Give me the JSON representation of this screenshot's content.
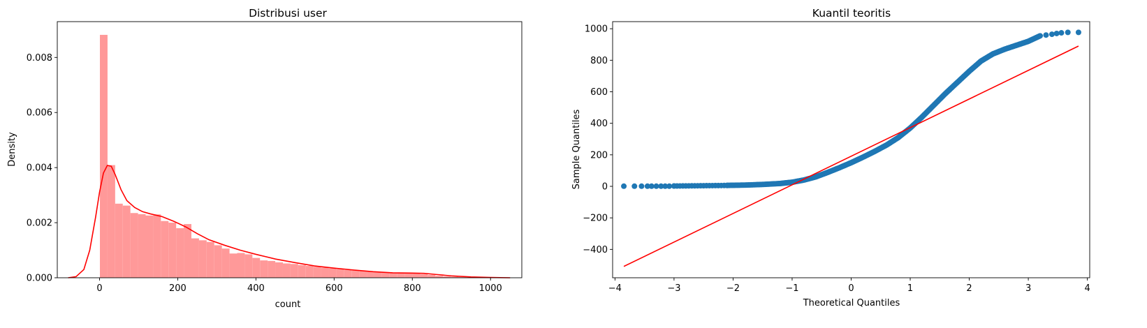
{
  "chart_data": [
    {
      "type": "histogram_kde",
      "title": "Distribusi user",
      "xlabel": "count",
      "ylabel": "Density",
      "xlim": [
        -108,
        1080
      ],
      "ylim": [
        0,
        0.0093
      ],
      "xticks": [
        0,
        200,
        400,
        600,
        800,
        1000
      ],
      "yticks": [
        0.0,
        0.002,
        0.004,
        0.006,
        0.008
      ],
      "ytick_labels": [
        "0.000",
        "0.002",
        "0.004",
        "0.006",
        "0.008"
      ],
      "grid": false,
      "colors": {
        "bars": "#ff9999",
        "kde": "#ff0000"
      },
      "bin_width": 19.5,
      "bins_start": 1,
      "hist_density": [
        0.00882,
        0.00409,
        0.00269,
        0.00262,
        0.00235,
        0.00231,
        0.00226,
        0.0023,
        0.00206,
        0.002,
        0.0018,
        0.00195,
        0.00143,
        0.00136,
        0.0013,
        0.00118,
        0.00106,
        0.00088,
        0.0009,
        0.00085,
        0.00072,
        0.00063,
        0.00061,
        0.00056,
        0.00052,
        0.0005,
        0.00046,
        0.00043,
        0.0004,
        0.00037,
        0.00034,
        0.00031,
        0.00028,
        0.00026,
        0.00024,
        0.00023,
        0.00021,
        0.0002,
        0.00019,
        0.00018,
        0.00018,
        0.00017,
        0.00013,
        0.0001,
        7e-05,
        5e-05,
        4e-05,
        3e-05,
        2e-05,
        1e-05,
        1e-05
      ],
      "kde": {
        "x": [
          -80,
          -60,
          -40,
          -25,
          -10,
          0,
          10,
          20,
          30,
          40,
          55,
          70,
          90,
          110,
          130,
          160,
          190,
          220,
          250,
          280,
          320,
          360,
          400,
          450,
          500,
          550,
          600,
          650,
          700,
          750,
          800,
          830,
          860,
          900,
          950,
          1000,
          1050
        ],
        "y": [
          0.0,
          4e-05,
          0.0003,
          0.001,
          0.0022,
          0.0031,
          0.0038,
          0.00408,
          0.00405,
          0.00375,
          0.0032,
          0.0028,
          0.00255,
          0.0024,
          0.00232,
          0.00222,
          0.00205,
          0.00185,
          0.0016,
          0.00138,
          0.00118,
          0.001,
          0.00085,
          0.00068,
          0.00055,
          0.00043,
          0.00035,
          0.00028,
          0.00022,
          0.00018,
          0.00017,
          0.00016,
          0.00012,
          7e-05,
          3e-05,
          1e-05,
          0.0
        ]
      }
    },
    {
      "type": "scatter",
      "title": "Kuantil teoritis",
      "xlabel": "Theoretical Quantiles",
      "ylabel": "Sample Quantiles",
      "xlim": [
        -4.04,
        4.04
      ],
      "ylim": [
        -580,
        1045
      ],
      "xticks": [
        -4,
        -3,
        -2,
        -1,
        0,
        1,
        2,
        3,
        4
      ],
      "xtick_labels": [
        "−4",
        "−3",
        "−2",
        "−1",
        "0",
        "1",
        "2",
        "3",
        "4"
      ],
      "yticks": [
        -400,
        -200,
        0,
        200,
        400,
        600,
        800,
        1000
      ],
      "ytick_labels": [
        "−400",
        "−200",
        "0",
        "200",
        "400",
        "600",
        "800",
        "1000"
      ],
      "grid": false,
      "colors": {
        "points": "#1f77b4",
        "reference_line": "#ff0000"
      },
      "qq_curve": {
        "x": [
          -2.1,
          -1.8,
          -1.5,
          -1.2,
          -1.0,
          -0.8,
          -0.6,
          -0.4,
          -0.2,
          0.0,
          0.2,
          0.4,
          0.6,
          0.8,
          1.0,
          1.2,
          1.4,
          1.6,
          1.8,
          2.0,
          2.2,
          2.4,
          2.6,
          2.8,
          3.0,
          3.2
        ],
        "y": [
          6,
          8,
          12,
          18,
          26,
          40,
          60,
          88,
          118,
          150,
          185,
          222,
          262,
          310,
          370,
          440,
          515,
          590,
          660,
          730,
          795,
          840,
          870,
          895,
          920,
          955
        ]
      },
      "qq_tail_points": [
        {
          "x": -3.85,
          "y": 1
        },
        {
          "x": -3.67,
          "y": 1
        },
        {
          "x": -3.55,
          "y": 1
        },
        {
          "x": -3.45,
          "y": 1
        },
        {
          "x": -3.38,
          "y": 1
        },
        {
          "x": -3.3,
          "y": 1
        },
        {
          "x": -3.22,
          "y": 1
        },
        {
          "x": -3.15,
          "y": 1
        },
        {
          "x": -3.08,
          "y": 1
        },
        {
          "x": -3.0,
          "y": 2
        },
        {
          "x": 3.3,
          "y": 960
        },
        {
          "x": 3.4,
          "y": 965
        },
        {
          "x": 3.48,
          "y": 970
        },
        {
          "x": 3.56,
          "y": 974
        },
        {
          "x": 3.67,
          "y": 977
        },
        {
          "x": 3.85,
          "y": 977
        }
      ],
      "reference_line": {
        "x": [
          -3.85,
          3.85
        ],
        "y": [
          -508,
          890
        ]
      }
    }
  ]
}
